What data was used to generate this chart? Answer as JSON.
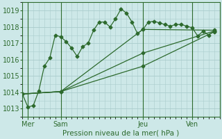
{
  "bg_color": "#cde8e8",
  "grid_color": "#aacccc",
  "line_color": "#2d6a2d",
  "xlabel_text": "Pression niveau de la mer( hPa )",
  "ylim": [
    1012.5,
    1019.5
  ],
  "yticks": [
    1013,
    1014,
    1015,
    1016,
    1017,
    1018,
    1019
  ],
  "xlim": [
    0,
    36
  ],
  "day_labels": [
    "Mer",
    "Sam",
    "Jeu",
    "Ven"
  ],
  "day_positions": [
    1,
    7,
    22,
    31
  ],
  "vline_positions": [
    1,
    7,
    22,
    31
  ],
  "series1_x": [
    0,
    1,
    2,
    3,
    4,
    5,
    6,
    7,
    8,
    9,
    10,
    11,
    12,
    13,
    14,
    15,
    16,
    17,
    18,
    19,
    20,
    21,
    22,
    23,
    24,
    25,
    26,
    27,
    28,
    29,
    30,
    31,
    32,
    33,
    34,
    35
  ],
  "series1_y": [
    1013.9,
    1013.1,
    1013.2,
    1014.1,
    1015.6,
    1016.1,
    1017.5,
    1017.4,
    1017.1,
    1016.7,
    1016.2,
    1016.8,
    1017.0,
    1017.8,
    1018.3,
    1018.3,
    1018.0,
    1018.5,
    1019.1,
    1018.85,
    1018.3,
    1017.6,
    1017.85,
    1018.3,
    1018.35,
    1018.25,
    1018.15,
    1018.05,
    1018.15,
    1018.15,
    1018.05,
    1017.95,
    1017.45,
    1017.75,
    1017.5,
    1017.75
  ],
  "series2_x": [
    0,
    7,
    22,
    35
  ],
  "series2_y": [
    1013.9,
    1014.05,
    1015.6,
    1017.7
  ],
  "series3_x": [
    0,
    7,
    22,
    35
  ],
  "series3_y": [
    1013.9,
    1014.05,
    1016.4,
    1017.75
  ],
  "series4_x": [
    0,
    7,
    22,
    35
  ],
  "series4_y": [
    1013.9,
    1014.05,
    1017.85,
    1017.8
  ]
}
